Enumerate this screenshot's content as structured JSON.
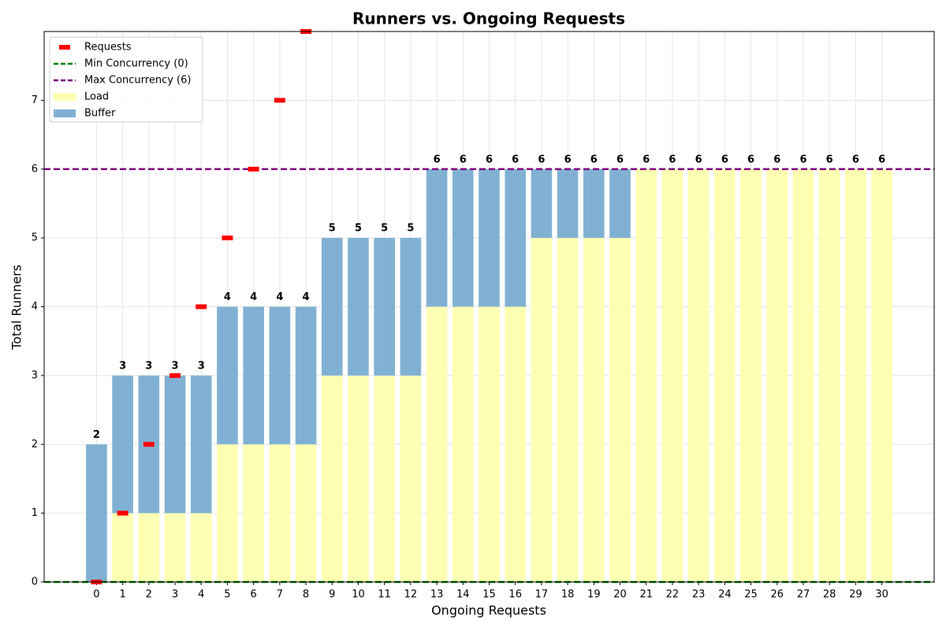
{
  "chart_data": {
    "type": "bar",
    "title": "Runners vs. Ongoing Requests",
    "xlabel": "Ongoing Requests",
    "ylabel": "Total Runners",
    "x": [
      0,
      1,
      2,
      3,
      4,
      5,
      6,
      7,
      8,
      9,
      10,
      11,
      12,
      13,
      14,
      15,
      16,
      17,
      18,
      19,
      20,
      21,
      22,
      23,
      24,
      25,
      26,
      27,
      28,
      29,
      30
    ],
    "series": [
      {
        "name": "Load",
        "color": "#ffffb3",
        "values": [
          0,
          1,
          1,
          1,
          1,
          2,
          2,
          2,
          2,
          3,
          3,
          3,
          3,
          4,
          4,
          4,
          4,
          5,
          5,
          5,
          5,
          6,
          6,
          6,
          6,
          6,
          6,
          6,
          6,
          6,
          6
        ]
      },
      {
        "name": "Buffer",
        "color": "#80b1d3",
        "values": [
          2,
          2,
          2,
          2,
          2,
          2,
          2,
          2,
          2,
          2,
          2,
          2,
          2,
          2,
          2,
          2,
          2,
          1,
          1,
          1,
          1,
          0,
          0,
          0,
          0,
          0,
          0,
          0,
          0,
          0,
          0
        ]
      }
    ],
    "totals": [
      2,
      3,
      3,
      3,
      3,
      4,
      4,
      4,
      4,
      5,
      5,
      5,
      5,
      6,
      6,
      6,
      6,
      6,
      6,
      6,
      6,
      6,
      6,
      6,
      6,
      6,
      6,
      6,
      6,
      6,
      6
    ],
    "scatter": {
      "name": "Requests",
      "color": "#ff0000",
      "x": [
        0,
        1,
        2,
        3,
        4,
        5,
        6,
        7,
        8
      ],
      "y": [
        0,
        1,
        2,
        3,
        4,
        5,
        6,
        7,
        8
      ]
    },
    "hlines": [
      {
        "name": "Min Concurrency (0)",
        "value": 0,
        "color": "#008000"
      },
      {
        "name": "Max Concurrency (6)",
        "value": 6,
        "color": "#800080"
      }
    ],
    "xlim": [
      -2,
      32
    ],
    "ylim": [
      0,
      8
    ],
    "xticks": [
      0,
      1,
      2,
      3,
      4,
      5,
      6,
      7,
      8,
      9,
      10,
      11,
      12,
      13,
      14,
      15,
      16,
      17,
      18,
      19,
      20,
      21,
      22,
      23,
      24,
      25,
      26,
      27,
      28,
      29,
      30
    ],
    "yticks": [
      0,
      1,
      2,
      3,
      4,
      5,
      6,
      7
    ],
    "grid": true,
    "legend": "upper-left"
  }
}
